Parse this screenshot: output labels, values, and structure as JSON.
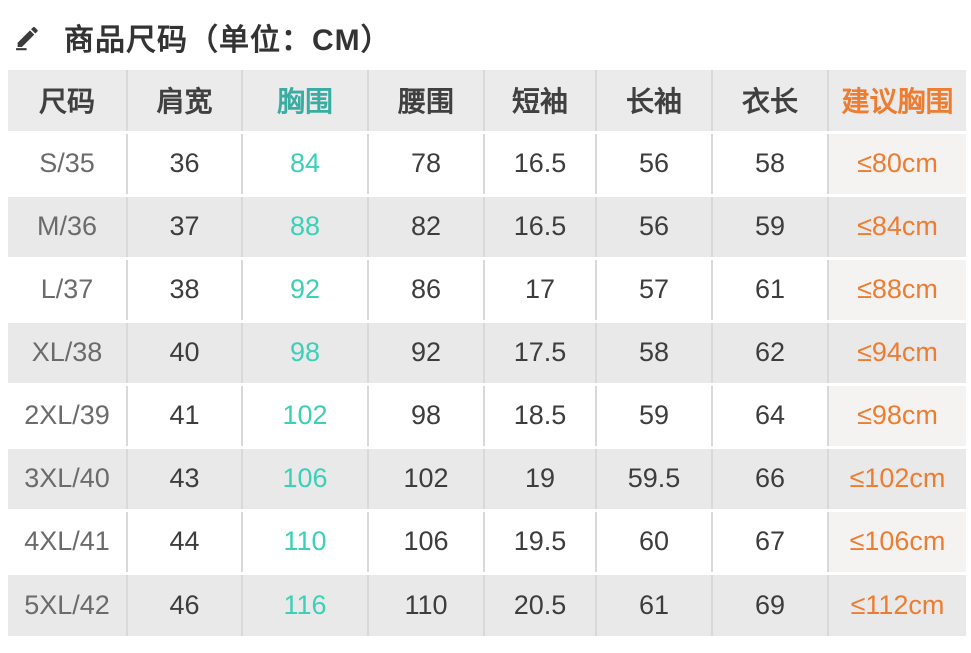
{
  "title": {
    "icon": "pencil-edit-icon",
    "text": "商品尺码（单位：CM）",
    "unit": "CM"
  },
  "colors": {
    "bust_column_header": "#3aada2",
    "bust_column_value": "#3bd0b8",
    "suggest_column": "#ed7d31",
    "header_bg": "#ebebeb",
    "stripe_bg": "#e9e9e9"
  },
  "table": {
    "columns": [
      {
        "key": "size",
        "label": "尺码",
        "style": "size"
      },
      {
        "key": "shoulder",
        "label": "肩宽",
        "style": "default"
      },
      {
        "key": "bust",
        "label": "胸围",
        "style": "teal"
      },
      {
        "key": "waist",
        "label": "腰围",
        "style": "default"
      },
      {
        "key": "short_sleeve",
        "label": "短袖",
        "style": "default"
      },
      {
        "key": "long_sleeve",
        "label": "长袖",
        "style": "default"
      },
      {
        "key": "length",
        "label": "衣长",
        "style": "default"
      },
      {
        "key": "suggest_bust",
        "label": "建议胸围",
        "style": "orange"
      }
    ],
    "rows": [
      [
        "S/35",
        "36",
        "84",
        "78",
        "16.5",
        "56",
        "58",
        "≤80cm"
      ],
      [
        "M/36",
        "37",
        "88",
        "82",
        "16.5",
        "56",
        "59",
        "≤84cm"
      ],
      [
        "L/37",
        "38",
        "92",
        "86",
        "17",
        "57",
        "61",
        "≤88cm"
      ],
      [
        "XL/38",
        "40",
        "98",
        "92",
        "17.5",
        "58",
        "62",
        "≤94cm"
      ],
      [
        "2XL/39",
        "41",
        "102",
        "98",
        "18.5",
        "59",
        "64",
        "≤98cm"
      ],
      [
        "3XL/40",
        "43",
        "106",
        "102",
        "19",
        "59.5",
        "66",
        "≤102cm"
      ],
      [
        "4XL/41",
        "44",
        "110",
        "106",
        "19.5",
        "60",
        "67",
        "≤106cm"
      ],
      [
        "5XL/42",
        "46",
        "116",
        "110",
        "20.5",
        "61",
        "69",
        "≤112cm"
      ]
    ]
  }
}
